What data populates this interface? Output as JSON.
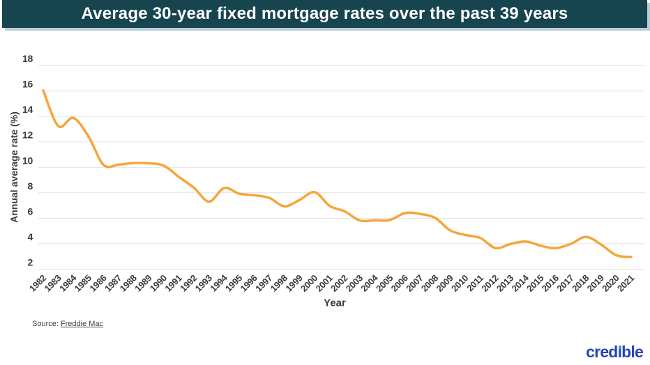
{
  "header": {
    "title": "Average 30-year fixed mortgage rates over the past 39 years"
  },
  "source": {
    "label": "Source:",
    "link_text": "Freddie Mac"
  },
  "logo": {
    "text": "credible",
    "part_before": "cred",
    "part_i": "ı",
    "part_after": "ble",
    "text_color": "#2544b5",
    "dot_color": "#27b287"
  },
  "chart_data": {
    "type": "line",
    "title": "Average 30-year fixed mortgage rates over the past 39 years",
    "xlabel": "Year",
    "ylabel": "Annual average rate (%)",
    "categories": [
      "1982",
      "1983",
      "1984",
      "1985",
      "1986",
      "1987",
      "1988",
      "1989",
      "1990",
      "1991",
      "1992",
      "1993",
      "1994",
      "1995",
      "1996",
      "1997",
      "1998",
      "1999",
      "2000",
      "2001",
      "2002",
      "2003",
      "2004",
      "2005",
      "2006",
      "2007",
      "2008",
      "2009",
      "2010",
      "2011",
      "2012",
      "2013",
      "2014",
      "2015",
      "2016",
      "2017",
      "2018",
      "2019",
      "2020",
      "2021"
    ],
    "values": [
      16.04,
      13.24,
      13.88,
      12.43,
      10.19,
      10.21,
      10.34,
      10.32,
      10.13,
      9.25,
      8.39,
      7.31,
      8.38,
      7.93,
      7.81,
      7.6,
      6.94,
      7.44,
      8.05,
      6.97,
      6.54,
      5.83,
      5.84,
      5.87,
      6.41,
      6.34,
      6.03,
      5.04,
      4.69,
      4.45,
      3.66,
      3.98,
      4.17,
      3.85,
      3.65,
      3.99,
      4.54,
      3.94,
      3.1,
      2.96
    ],
    "ylim": [
      2,
      18
    ],
    "y_ticks": [
      18,
      16,
      14,
      12,
      10,
      8,
      6,
      4,
      2
    ],
    "grid": "horizontal-only",
    "legend": "none",
    "line_color": "#f5a63a",
    "tick_color": "#3a3a3a",
    "gridline_color": "#e2e2e2"
  }
}
